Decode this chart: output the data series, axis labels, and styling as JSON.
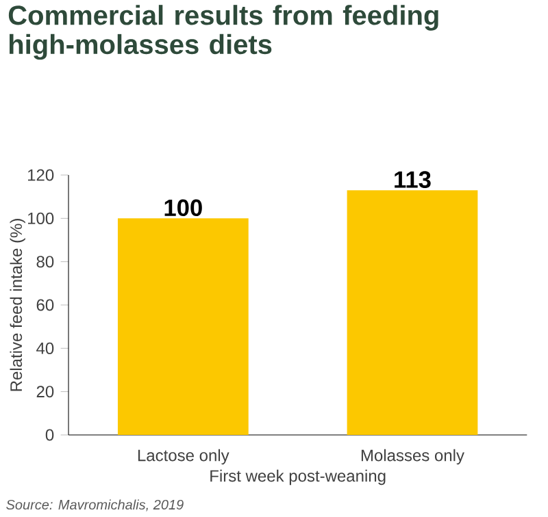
{
  "chart_data": {
    "type": "bar",
    "title": "Commercial results from feeding high-molasses diets",
    "categories": [
      "Lactose only",
      "Molasses only"
    ],
    "values": [
      100,
      113
    ],
    "color": "#fcc800",
    "xlabel": "First week post-weaning",
    "ylabel": "Relative feed intake (%)",
    "ylim": [
      0,
      120
    ],
    "yticks": [
      0,
      20,
      40,
      60,
      80,
      100,
      120
    ],
    "data_labels": true,
    "grid": false,
    "annotations": [
      "Source: Mavromichalis, 2019"
    ]
  }
}
